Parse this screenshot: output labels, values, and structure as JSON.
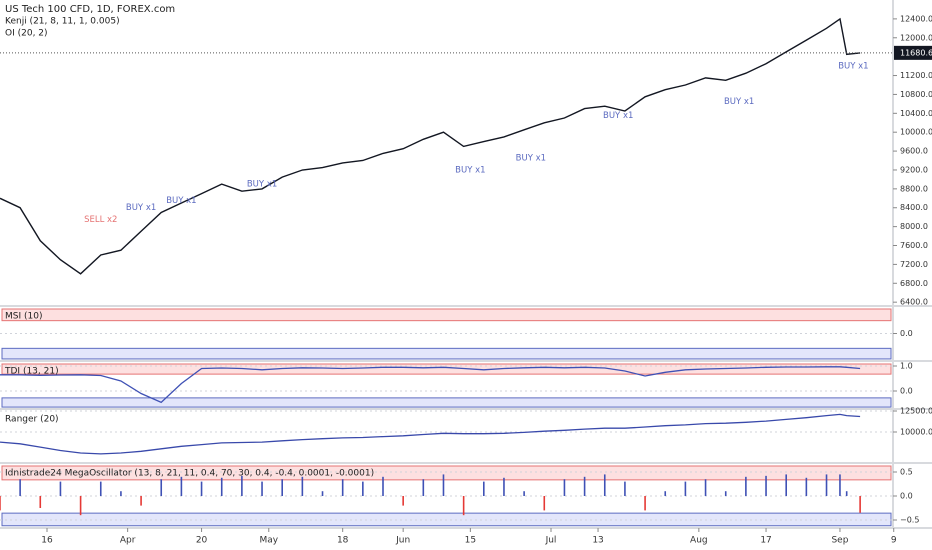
{
  "chart_data": [
    {
      "type": "line",
      "title": "US Tech 100 CFD, 1D, FOREX.com",
      "subtitle": "Kenji (21, 8, 11, 1, 0.005)",
      "legend_extra": "OI (20, 2)",
      "color": "#131722",
      "x": [
        -7,
        -4,
        -1,
        2,
        5,
        8,
        11,
        14,
        17,
        20,
        23,
        26,
        29,
        32,
        35,
        38,
        41,
        44,
        47,
        50,
        53,
        56,
        59,
        62,
        65,
        68,
        71,
        74,
        77,
        80,
        83,
        86,
        89,
        92,
        95,
        98,
        101,
        104,
        107,
        110,
        113,
        116,
        118,
        119,
        121
      ],
      "values": [
        8600,
        8400,
        7700,
        7300,
        7000,
        7400,
        7500,
        7900,
        8300,
        8500,
        8700,
        8900,
        8750,
        8800,
        9050,
        9200,
        9250,
        9350,
        9400,
        9550,
        9650,
        9850,
        10000,
        9700,
        9800,
        9900,
        10050,
        10200,
        10300,
        10500,
        10550,
        10450,
        10750,
        10900,
        11000,
        11150,
        11100,
        11250,
        11450,
        11700,
        11950,
        12200,
        12400,
        11650,
        11680.6
      ],
      "last_price": 11680.6,
      "xlim": [
        -7,
        126
      ],
      "xticks": [
        {
          "value": 0,
          "label": "16"
        },
        {
          "value": 12,
          "label": "Apr"
        },
        {
          "value": 23,
          "label": "20"
        },
        {
          "value": 33,
          "label": "May"
        },
        {
          "value": 44,
          "label": "18"
        },
        {
          "value": 53,
          "label": "Jun"
        },
        {
          "value": 63,
          "label": "15"
        },
        {
          "value": 75,
          "label": "Jul"
        },
        {
          "value": 82,
          "label": "13"
        },
        {
          "value": 97,
          "label": "Aug"
        },
        {
          "value": 107,
          "label": "17"
        },
        {
          "value": 118,
          "label": "Sep"
        },
        {
          "value": 126,
          "label": "9"
        }
      ],
      "ylim": [
        6340,
        12800
      ],
      "yticks": [
        {
          "value": 6400,
          "label": "6400.0"
        },
        {
          "value": 6800,
          "label": "6800.0"
        },
        {
          "value": 7200,
          "label": "7200.0"
        },
        {
          "value": 7600,
          "label": "7600.0"
        },
        {
          "value": 8000,
          "label": "8000.0"
        },
        {
          "value": 8400,
          "label": "8400.0"
        },
        {
          "value": 8800,
          "label": "8800.0"
        },
        {
          "value": 9200,
          "label": "9200.0"
        },
        {
          "value": 9600,
          "label": "9600.0"
        },
        {
          "value": 10000,
          "label": "10000.0"
        },
        {
          "value": 10400,
          "label": "10400.0"
        },
        {
          "value": 10800,
          "label": "10800.0"
        },
        {
          "value": 11200,
          "label": "11200.0"
        },
        {
          "value": 12000,
          "label": "12000.0"
        },
        {
          "value": 12400,
          "label": "12400.0"
        }
      ],
      "annotations": [
        {
          "text": "SELL x2",
          "x": 8,
          "y": 8150,
          "color": "#e57373"
        },
        {
          "text": "BUY x1",
          "x": 14,
          "y": 8400,
          "color": "#5c6bc0"
        },
        {
          "text": "BUY x1",
          "x": 20,
          "y": 8550,
          "color": "#5c6bc0"
        },
        {
          "text": "BUY x1",
          "x": 32,
          "y": 8900,
          "color": "#5c6bc0"
        },
        {
          "text": "BUY x1",
          "x": 63,
          "y": 9200,
          "color": "#5c6bc0"
        },
        {
          "text": "BUY x1",
          "x": 72,
          "y": 9450,
          "color": "#5c6bc0"
        },
        {
          "text": "BUY x1",
          "x": 85,
          "y": 10350,
          "color": "#5c6bc0"
        },
        {
          "text": "BUY x1",
          "x": 103,
          "y": 10650,
          "color": "#5c6bc0"
        },
        {
          "text": "BUY x1",
          "x": 120,
          "y": 11400,
          "color": "#5c6bc0"
        }
      ]
    },
    {
      "type": "bands",
      "title": "MSI (10)",
      "ylim": [
        -1,
        1
      ],
      "yticks": [
        {
          "value": 0,
          "label": "0.0"
        }
      ]
    },
    {
      "type": "line",
      "title": "TDI (13, 21)",
      "color": "#3f51b5",
      "values": [
        0.65,
        0.65,
        0.63,
        0.64,
        0.65,
        0.62,
        0.4,
        -0.1,
        -0.45,
        0.3,
        0.9,
        0.92,
        0.9,
        0.85,
        0.9,
        0.93,
        0.92,
        0.9,
        0.92,
        0.95,
        0.95,
        0.93,
        0.95,
        0.9,
        0.85,
        0.9,
        0.93,
        0.95,
        0.93,
        0.95,
        0.92,
        0.8,
        0.6,
        0.75,
        0.85,
        0.88,
        0.9,
        0.92,
        0.95,
        0.96,
        0.96,
        0.97,
        0.97,
        0.95,
        0.9
      ],
      "ylim": [
        -0.68,
        1.16
      ],
      "yticks": [
        {
          "value": 0,
          "label": "0.0"
        },
        {
          "value": 1,
          "label": "1.0"
        }
      ]
    },
    {
      "type": "line",
      "title": "Ranger (20)",
      "color": "#3949ab",
      "values": [
        8800,
        8600,
        8200,
        7800,
        7500,
        7400,
        7500,
        7700,
        8000,
        8300,
        8500,
        8700,
        8750,
        8800,
        8950,
        9100,
        9200,
        9300,
        9350,
        9450,
        9550,
        9700,
        9850,
        9800,
        9800,
        9850,
        9950,
        10100,
        10200,
        10350,
        10450,
        10450,
        10600,
        10750,
        10850,
        11000,
        11050,
        11150,
        11300,
        11500,
        11700,
        11950,
        12100,
        11950,
        11850
      ],
      "ylim": [
        6430,
        12620
      ],
      "yticks": [
        {
          "value": 10000,
          "label": "10000.0"
        },
        {
          "value": 12500,
          "label": "12500.0"
        }
      ]
    },
    {
      "type": "bar",
      "title": "Idnistrade24 MegaOscillator (13, 8, 21, 11, 0.4, 70, 30, 0.4, -0.4, 0.0001, -0.0001)",
      "values": [
        -0.3,
        0.35,
        -0.25,
        0.3,
        -0.4,
        0.3,
        0.1,
        -0.2,
        0.35,
        0.4,
        0.3,
        0.38,
        0.42,
        0.3,
        0.35,
        0.4,
        0.1,
        0.35,
        0.3,
        0.4,
        -0.2,
        0.35,
        0.45,
        -0.4,
        0.3,
        0.38,
        0.1,
        -0.3,
        0.35,
        0.4,
        0.45,
        0.3,
        -0.3,
        0.1,
        0.3,
        0.35,
        0.1,
        0.4,
        0.42,
        0.45,
        0.38,
        0.45,
        0.45,
        0.1,
        -0.35
      ],
      "ylim": [
        -0.646,
        0.667
      ],
      "yticks": [
        {
          "value": 0.5,
          "label": "0.5"
        },
        {
          "value": 0,
          "label": "0.0"
        },
        {
          "value": -0.5,
          "label": "−0.5"
        }
      ]
    }
  ]
}
